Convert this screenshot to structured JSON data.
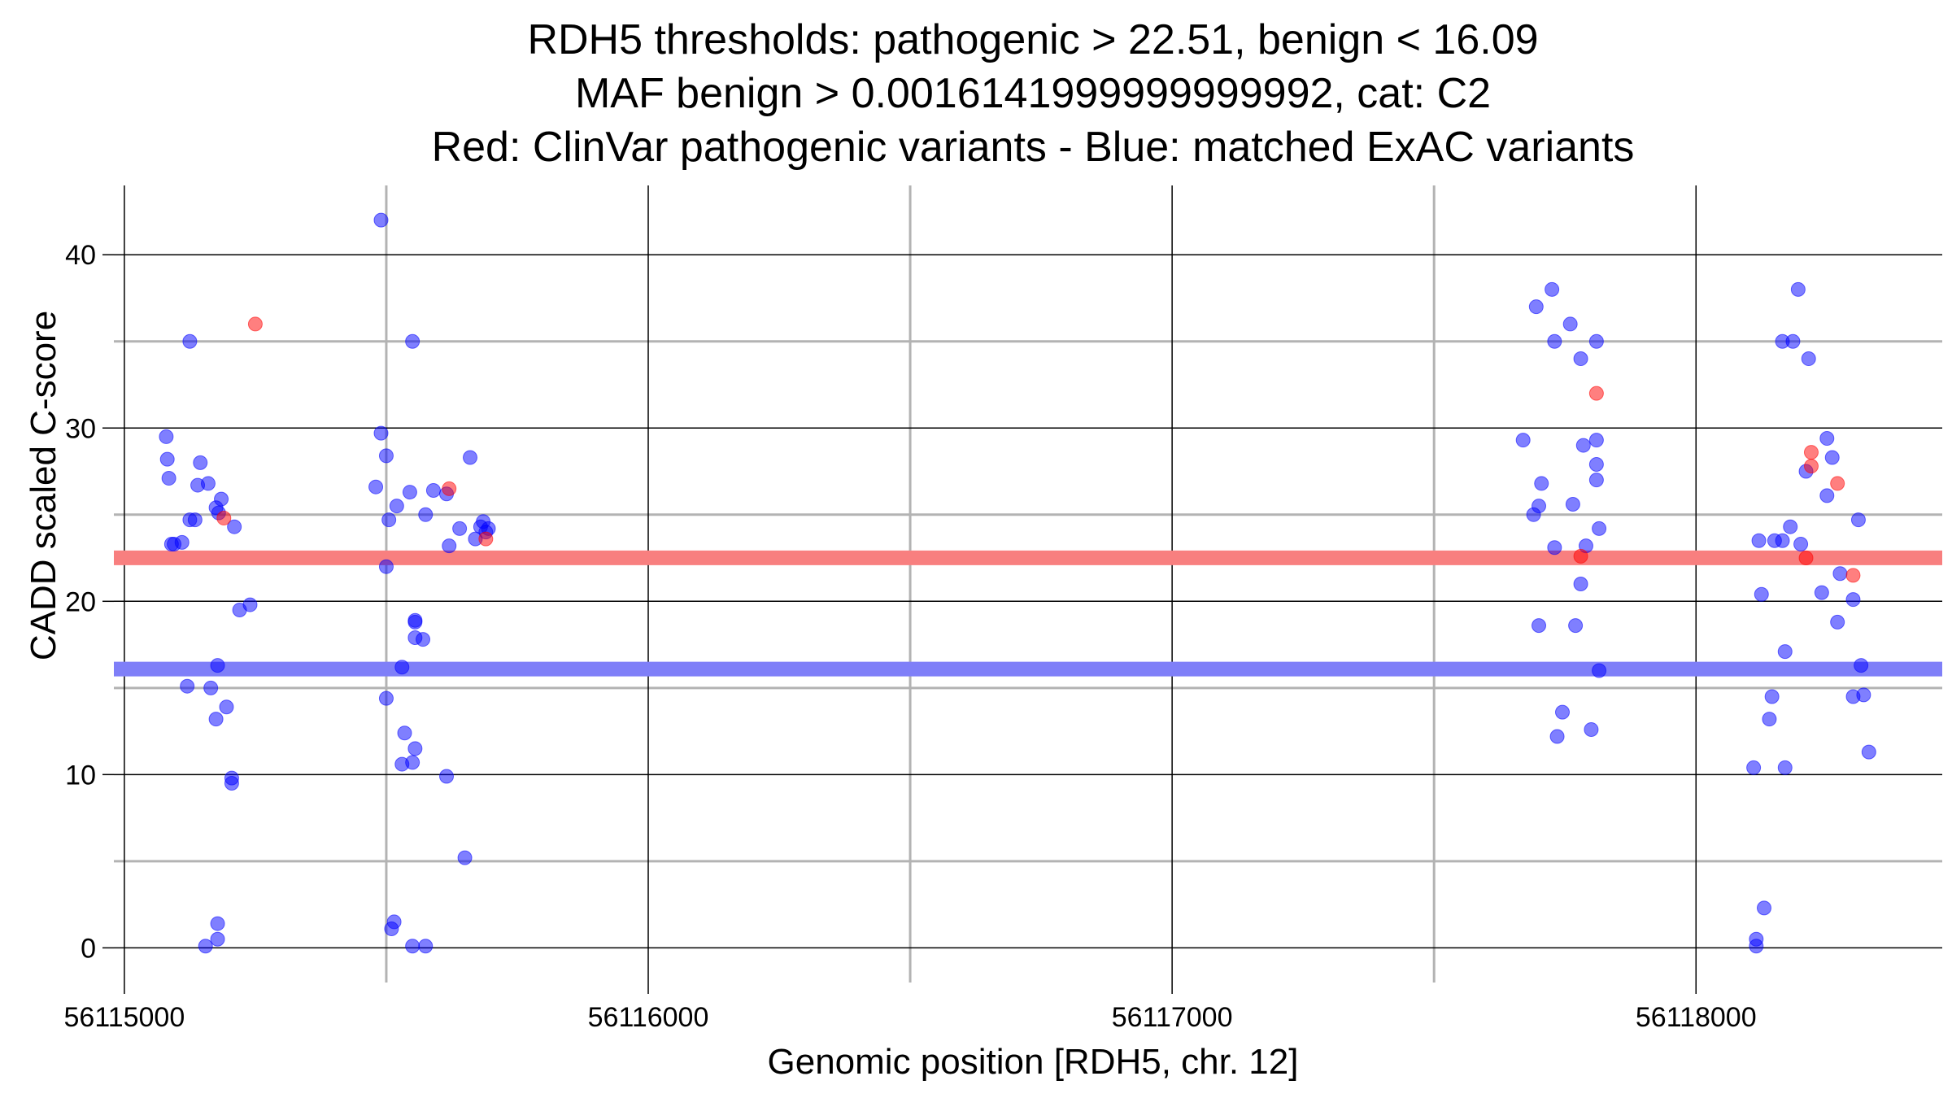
{
  "chart_data": {
    "type": "scatter",
    "title_lines": [
      "RDH5 thresholds: pathogenic > 22.51, benign < 16.09",
      "MAF benign > 0.0016141999999999992, cat: C2",
      "Red: ClinVar pathogenic variants - Blue: matched ExAC variants"
    ],
    "xlabel": "Genomic position [RDH5, chr. 12]",
    "ylabel": "CADD scaled C-score",
    "xlim": [
      56114980,
      56118470
    ],
    "ylim": [
      -2,
      44
    ],
    "x_ticks": [
      56115000,
      56116000,
      56117000,
      56118000
    ],
    "x_tick_labels": [
      "56115000",
      "56116000",
      "56117000",
      "56118000"
    ],
    "x_minor_ticks": [
      56115500,
      56116500,
      56117500
    ],
    "y_ticks": [
      0,
      10,
      20,
      30,
      40
    ],
    "y_tick_labels": [
      "0",
      "10",
      "20",
      "30",
      "40"
    ],
    "y_minor_ticks": [
      5,
      15,
      25,
      35
    ],
    "thresholds": [
      {
        "name": "pathogenic",
        "value": 22.51,
        "color": "#f87f7f"
      },
      {
        "name": "benign",
        "value": 16.09,
        "color": "#7f7ff8"
      }
    ],
    "colors": {
      "pathogenic": "#ff0000",
      "matched": "#0000ff",
      "major_grid": "#000000",
      "minor_grid": "#b3b3b3"
    },
    "series": [
      {
        "name": "ClinVar pathogenic variants",
        "color": "#ff0000",
        "points": [
          [
            56115250,
            36
          ],
          [
            56115190,
            24.8
          ],
          [
            56115620,
            26.5
          ],
          [
            56115690,
            23.6
          ],
          [
            56117810,
            32
          ],
          [
            56117780,
            22.6
          ],
          [
            56118210,
            22.5
          ],
          [
            56118220,
            28.6
          ],
          [
            56118220,
            27.8
          ],
          [
            56118270,
            26.8
          ],
          [
            56118300,
            21.5
          ]
        ]
      },
      {
        "name": "matched ExAC variants",
        "color": "#0000ff",
        "points": [
          [
            56115080,
            29.5
          ],
          [
            56115082,
            28.2
          ],
          [
            56115085,
            27.1
          ],
          [
            56115090,
            23.3
          ],
          [
            56115095,
            23.3
          ],
          [
            56115110,
            23.4
          ],
          [
            56115125,
            35
          ],
          [
            56115125,
            24.7
          ],
          [
            56115135,
            24.7
          ],
          [
            56115140,
            26.7
          ],
          [
            56115145,
            28
          ],
          [
            56115160,
            26.8
          ],
          [
            56115165,
            15
          ],
          [
            56115175,
            25.4
          ],
          [
            56115180,
            25.1
          ],
          [
            56115185,
            25.9
          ],
          [
            56115195,
            13.9
          ],
          [
            56115120,
            15.1
          ],
          [
            56115175,
            13.2
          ],
          [
            56115178,
            16.3
          ],
          [
            56115205,
            9.8
          ],
          [
            56115205,
            9.5
          ],
          [
            56115210,
            24.3
          ],
          [
            56115220,
            19.5
          ],
          [
            56115240,
            19.8
          ],
          [
            56115178,
            1.4
          ],
          [
            56115178,
            0.5
          ],
          [
            56115155,
            0.1
          ],
          [
            56115490,
            42
          ],
          [
            56115480,
            26.6
          ],
          [
            56115490,
            29.7
          ],
          [
            56115500,
            28.4
          ],
          [
            56115505,
            24.7
          ],
          [
            56115500,
            22
          ],
          [
            56115520,
            25.5
          ],
          [
            56115500,
            14.4
          ],
          [
            56115510,
            1.1
          ],
          [
            56115515,
            1.5
          ],
          [
            56115530,
            16.2
          ],
          [
            56115535,
            12.4
          ],
          [
            56115530,
            10.6
          ],
          [
            56115545,
            26.3
          ],
          [
            56115550,
            35
          ],
          [
            56115550,
            0.1
          ],
          [
            56115555,
            18.8
          ],
          [
            56115555,
            18.9
          ],
          [
            56115555,
            17.9
          ],
          [
            56115555,
            11.5
          ],
          [
            56115550,
            10.7
          ],
          [
            56115570,
            17.8
          ],
          [
            56115575,
            25
          ],
          [
            56115575,
            0.1
          ],
          [
            56115590,
            26.4
          ],
          [
            56115615,
            26.2
          ],
          [
            56115620,
            23.2
          ],
          [
            56115615,
            9.9
          ],
          [
            56115640,
            24.2
          ],
          [
            56115660,
            28.3
          ],
          [
            56115650,
            5.2
          ],
          [
            56115670,
            23.6
          ],
          [
            56115680,
            24.3
          ],
          [
            56115685,
            24.6
          ],
          [
            56115690,
            24.0
          ],
          [
            56115695,
            24.2
          ],
          [
            56117670,
            29.3
          ],
          [
            56117690,
            25
          ],
          [
            56117695,
            37
          ],
          [
            56117700,
            25.5
          ],
          [
            56117705,
            26.8
          ],
          [
            56117700,
            18.6
          ],
          [
            56117725,
            38
          ],
          [
            56117730,
            35
          ],
          [
            56117730,
            23.1
          ],
          [
            56117735,
            12.2
          ],
          [
            56117745,
            13.6
          ],
          [
            56117760,
            36
          ],
          [
            56117765,
            25.6
          ],
          [
            56117770,
            18.6
          ],
          [
            56117780,
            34
          ],
          [
            56117780,
            21
          ],
          [
            56117785,
            29
          ],
          [
            56117790,
            23.2
          ],
          [
            56117800,
            12.6
          ],
          [
            56117810,
            35
          ],
          [
            56117810,
            29.3
          ],
          [
            56117810,
            27.9
          ],
          [
            56117810,
            27
          ],
          [
            56117815,
            24.2
          ],
          [
            56117815,
            16
          ],
          [
            56118110,
            10.4
          ],
          [
            56118115,
            0.1
          ],
          [
            56118115,
            0.5
          ],
          [
            56118120,
            23.5
          ],
          [
            56118125,
            20.4
          ],
          [
            56118130,
            2.3
          ],
          [
            56118140,
            13.2
          ],
          [
            56118145,
            14.5
          ],
          [
            56118150,
            23.5
          ],
          [
            56118165,
            23.5
          ],
          [
            56118170,
            17.1
          ],
          [
            56118170,
            10.4
          ],
          [
            56118165,
            35
          ],
          [
            56118180,
            24.3
          ],
          [
            56118185,
            35
          ],
          [
            56118195,
            38
          ],
          [
            56118200,
            23.3
          ],
          [
            56118210,
            27.5
          ],
          [
            56118215,
            34
          ],
          [
            56118240,
            20.5
          ],
          [
            56118250,
            29.4
          ],
          [
            56118250,
            26.1
          ],
          [
            56118260,
            28.3
          ],
          [
            56118270,
            18.8
          ],
          [
            56118275,
            21.6
          ],
          [
            56118300,
            20.1
          ],
          [
            56118300,
            14.5
          ],
          [
            56118310,
            24.7
          ],
          [
            56118315,
            16.3
          ],
          [
            56118320,
            14.6
          ],
          [
            56118330,
            11.3
          ]
        ]
      }
    ]
  }
}
